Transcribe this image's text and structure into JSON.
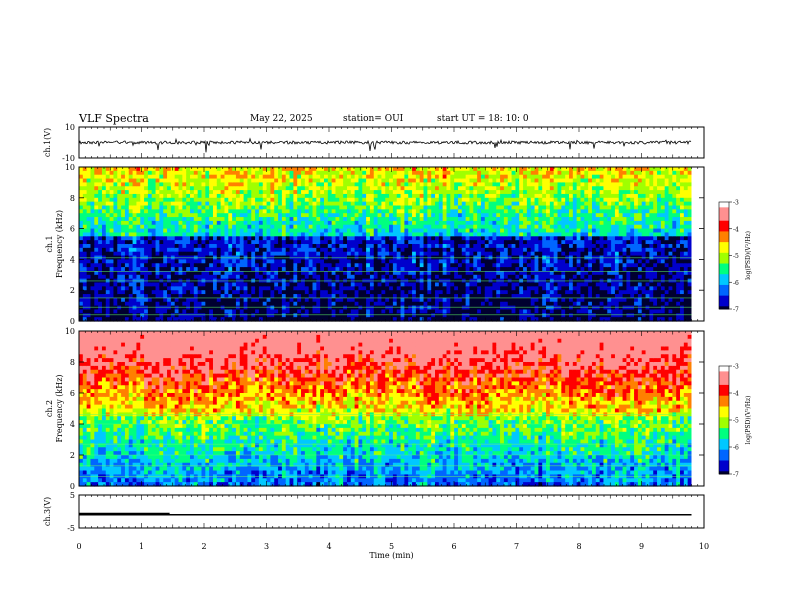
{
  "header": {
    "title": "VLF Spectra",
    "date": "May 22, 2025",
    "station": "station= OUI",
    "start": "start  UT  =   18: 10: 0"
  },
  "chart_data": [
    {
      "type": "line",
      "panel": "ch1-waveform",
      "ylabel": "ch.1(V)",
      "ylim": [
        -10,
        10
      ],
      "yticks": [
        "10",
        "-10"
      ],
      "xlim": [
        0,
        10
      ],
      "series": [
        {
          "values": [
            0
          ],
          "baseline": 0
        }
      ]
    },
    {
      "type": "heatmap",
      "panel": "ch1-spectrogram",
      "ylabel_line1": "ch.1",
      "ylabel_line2": "Frequency (kHz)",
      "ylim": [
        0,
        10
      ],
      "yticks": [
        "0",
        "2",
        "4",
        "6",
        "8",
        "10"
      ],
      "xlim": [
        0,
        9.8
      ],
      "colorbar": {
        "range": [
          -7,
          -3
        ],
        "ticks": [
          "-3",
          "-4",
          "-5",
          "-6",
          "-7"
        ],
        "label": "log(PSD)(V²/Hz)"
      }
    },
    {
      "type": "heatmap",
      "panel": "ch2-spectrogram",
      "ylabel_line1": "ch.2",
      "ylabel_line2": "Frequency (kHz)",
      "ylim": [
        0,
        10
      ],
      "yticks": [
        "0",
        "2",
        "4",
        "6",
        "8",
        "10"
      ],
      "xlim": [
        0,
        9.8
      ],
      "colorbar": {
        "range": [
          -7,
          -3
        ],
        "ticks": [
          "-3",
          "-4",
          "-5",
          "-6",
          "-7"
        ],
        "label": "log(PSD)(V²/Hz)"
      }
    },
    {
      "type": "line",
      "panel": "ch3-waveform",
      "ylabel": "ch.3(V)",
      "ylim": [
        -5,
        5
      ],
      "yticks": [
        "5",
        "-5"
      ],
      "xlim": [
        0,
        10
      ],
      "xlabel": "Time  (min)",
      "xticks": [
        "0",
        "1",
        "2",
        "3",
        "4",
        "5",
        "6",
        "7",
        "8",
        "9",
        "10"
      ],
      "series": [
        {
          "values": [
            -1,
            -1
          ]
        }
      ]
    }
  ],
  "colors": {
    "axis": "#000000",
    "colormap": [
      "#000030",
      "#0000cc",
      "#0066ff",
      "#00c8ff",
      "#00ff80",
      "#a0ff00",
      "#ffff00",
      "#ff8000",
      "#ff0000",
      "#ff9090",
      "#ffffff"
    ]
  }
}
